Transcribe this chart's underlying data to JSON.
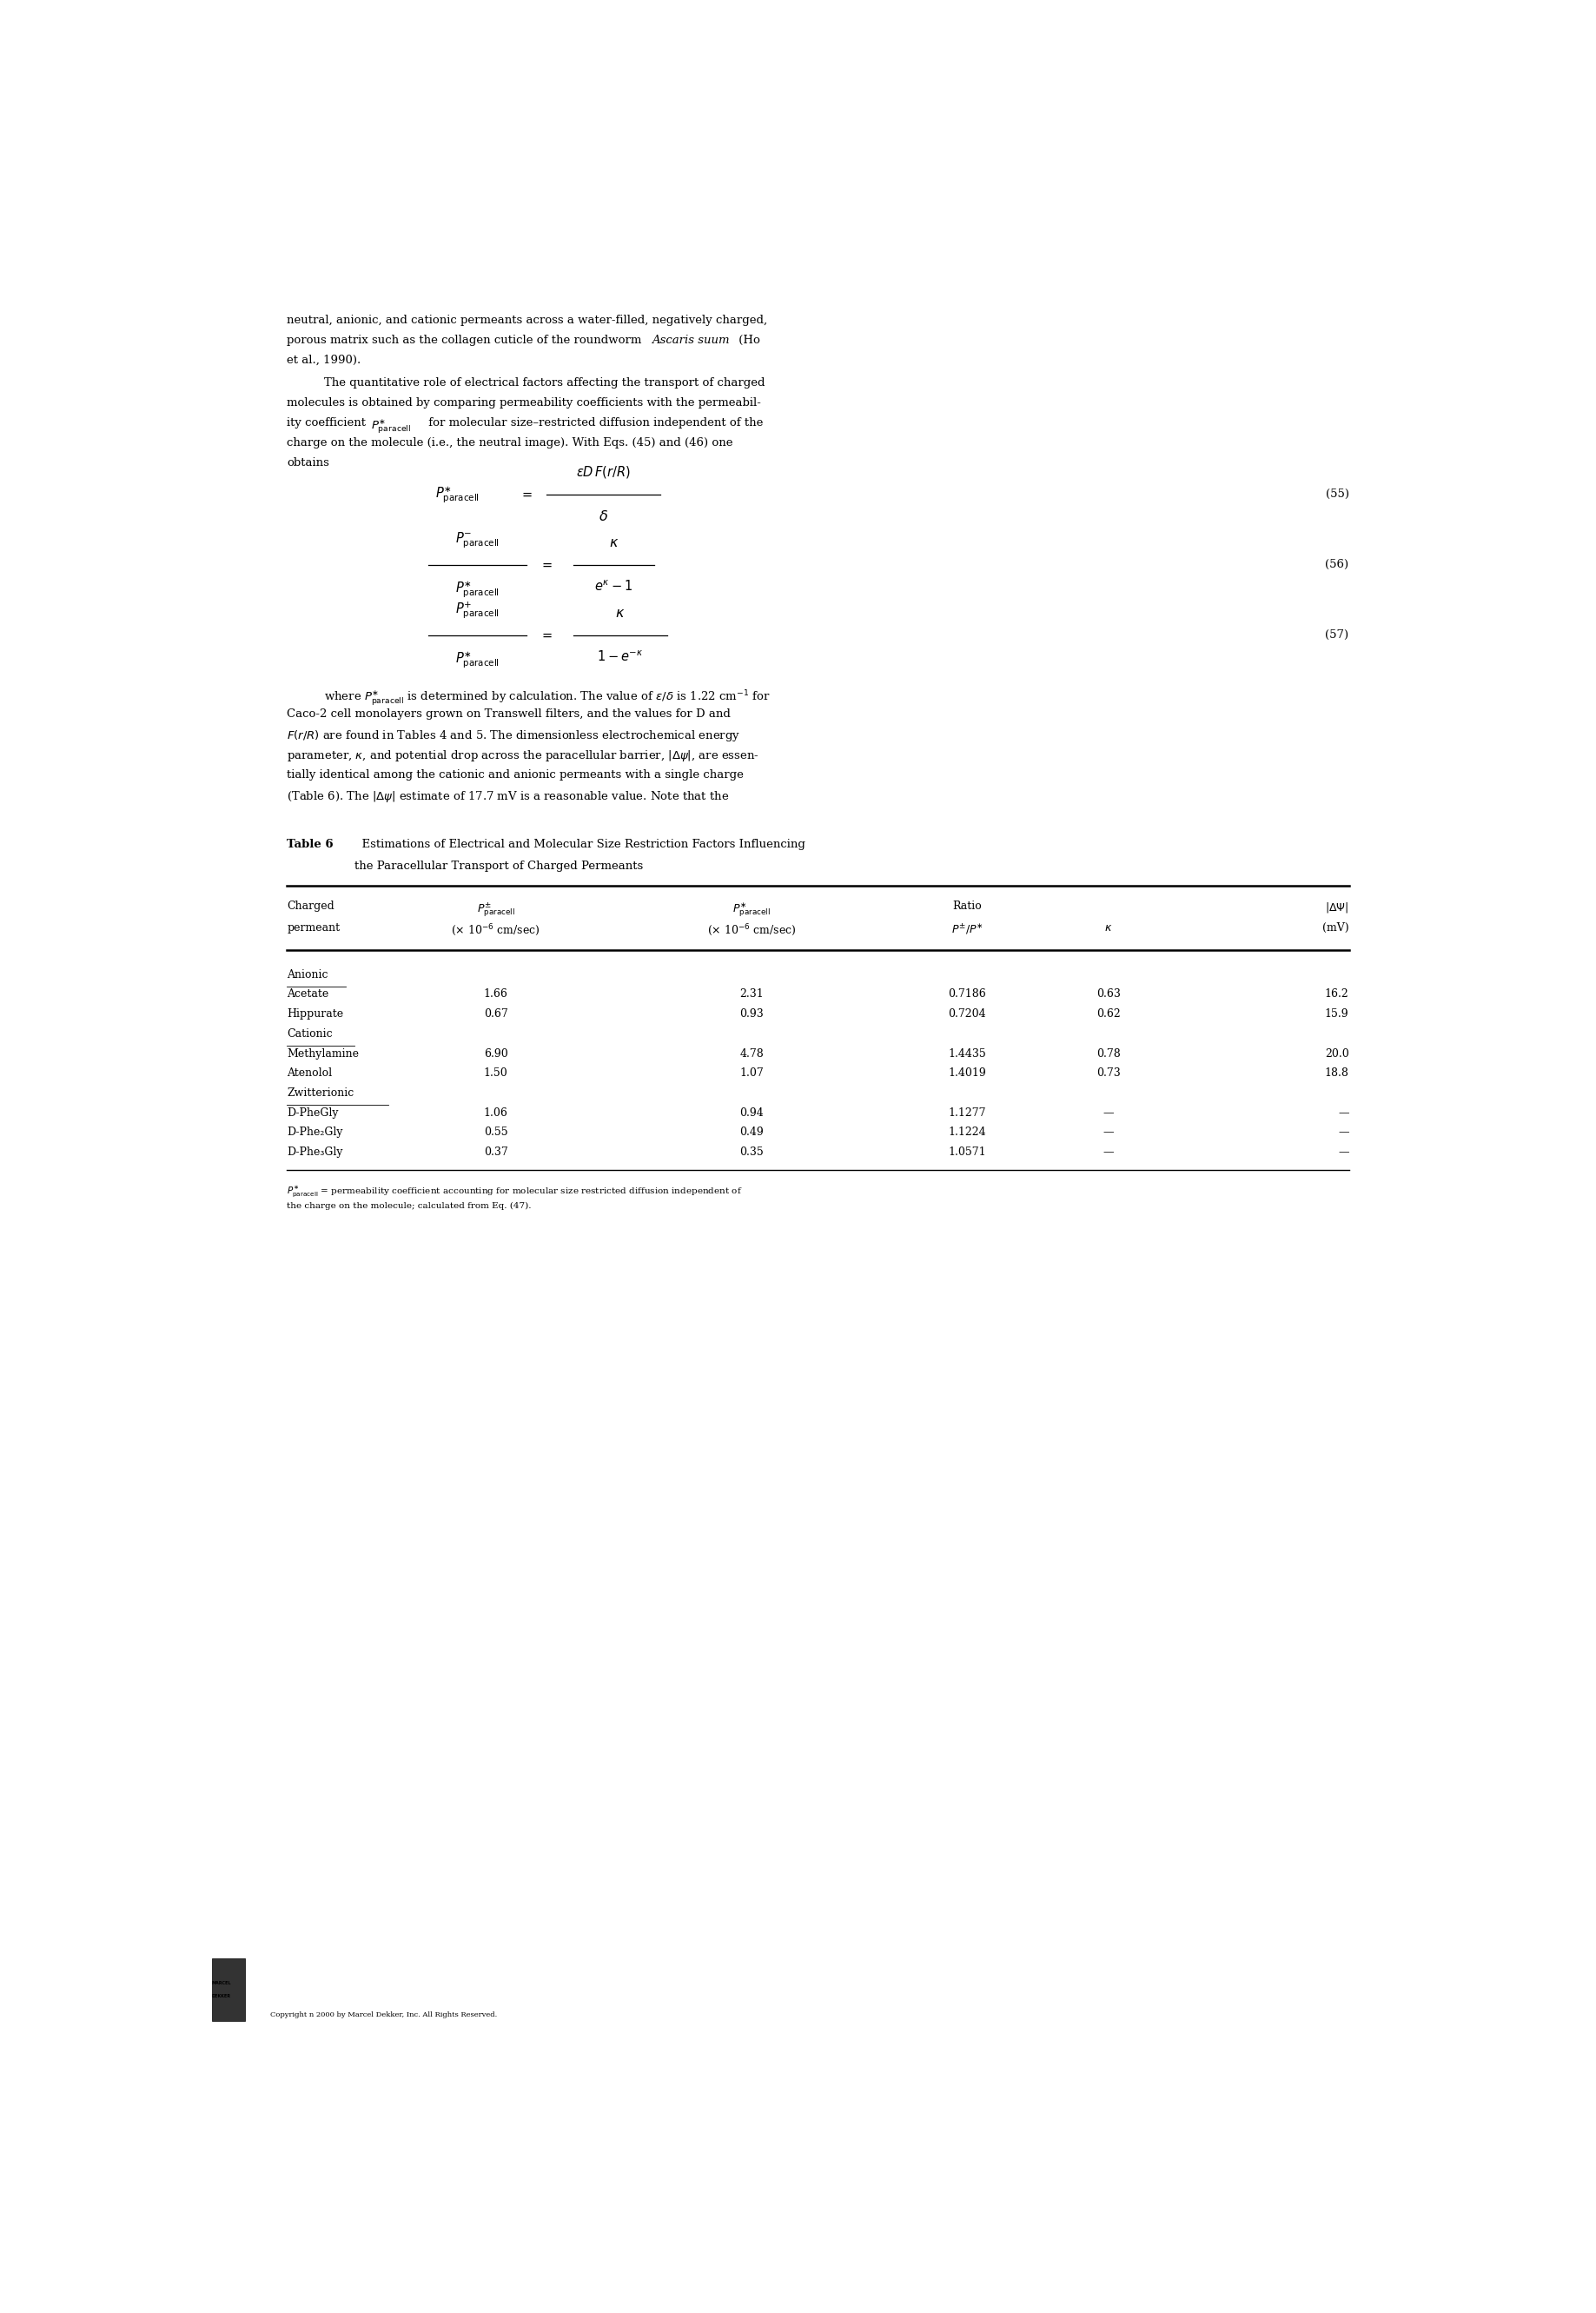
{
  "background_color": "#ffffff",
  "page_width": 18.37,
  "page_height": 26.61,
  "rows": [
    {
      "group": "Anionic",
      "name": "",
      "p_pm": "",
      "p_star": "",
      "ratio": "",
      "kappa": "",
      "deltapsi": ""
    },
    {
      "group": "",
      "name": "Acetate",
      "p_pm": "1.66",
      "p_star": "2.31",
      "ratio": "0.7186",
      "kappa": "0.63",
      "deltapsi": "16.2"
    },
    {
      "group": "",
      "name": "Hippurate",
      "p_pm": "0.67",
      "p_star": "0.93",
      "ratio": "0.7204",
      "kappa": "0.62",
      "deltapsi": "15.9"
    },
    {
      "group": "Cationic",
      "name": "",
      "p_pm": "",
      "p_star": "",
      "ratio": "",
      "kappa": "",
      "deltapsi": ""
    },
    {
      "group": "",
      "name": "Methylamine",
      "p_pm": "6.90",
      "p_star": "4.78",
      "ratio": "1.4435",
      "kappa": "0.78",
      "deltapsi": "20.0"
    },
    {
      "group": "",
      "name": "Atenolol",
      "p_pm": "1.50",
      "p_star": "1.07",
      "ratio": "1.4019",
      "kappa": "0.73",
      "deltapsi": "18.8"
    },
    {
      "group": "Zwitterionic",
      "name": "",
      "p_pm": "",
      "p_star": "",
      "ratio": "",
      "kappa": "",
      "deltapsi": ""
    },
    {
      "group": "",
      "name": "D-PheGly",
      "p_pm": "1.06",
      "p_star": "0.94",
      "ratio": "1.1277",
      "kappa": "—",
      "deltapsi": "—"
    },
    {
      "group": "",
      "name": "D-Phe₂Gly",
      "p_pm": "0.55",
      "p_star": "0.49",
      "ratio": "1.1224",
      "kappa": "—",
      "deltapsi": "—"
    },
    {
      "group": "",
      "name": "D-Phe₃Gly",
      "p_pm": "0.37",
      "p_star": "0.35",
      "ratio": "1.0571",
      "kappa": "—",
      "deltapsi": "—"
    }
  ],
  "footer_text": "Copyright n 2000 by Marcel Dekker, Inc. All Rights Reserved."
}
